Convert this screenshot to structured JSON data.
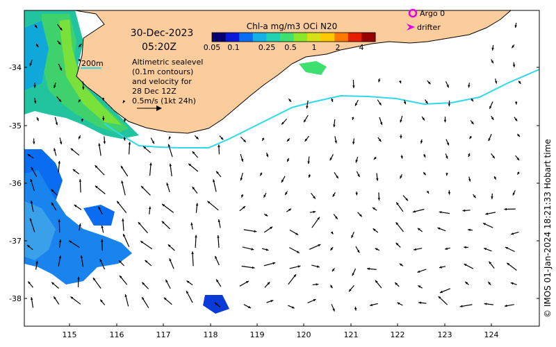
{
  "header": {
    "date": "30-Dec-2023",
    "time": "05:20Z"
  },
  "colorbar": {
    "title": "Chl-a mg/m3 OCi N20",
    "ticks": [
      "0.05",
      "0.1",
      "0.25",
      "0.5",
      "1",
      "2",
      "4"
    ],
    "colors": [
      "#08006e",
      "#0a1ad8",
      "#0a6cf0",
      "#14b0e6",
      "#20d2b0",
      "#3ee070",
      "#8ce62a",
      "#d6e014",
      "#ffc800",
      "#ff7800",
      "#e61e00",
      "#960000"
    ]
  },
  "legend": {
    "argo": "Argo 0",
    "drifter": "drifter",
    "argo_color": "#e000e0",
    "drifter_color": "#e000e0"
  },
  "contour_label": "200m",
  "contour_color": "#30d8e8",
  "annotation": {
    "line1": "Altimetric sealevel",
    "line2": "(0.1m contours)",
    "line3": "and velocity for",
    "line4": "28 Dec 12Z",
    "line5": "0.5m/s (1kt 24h)"
  },
  "x_axis": {
    "ticks": [
      "115",
      "116",
      "117",
      "118",
      "119",
      "120",
      "121",
      "122",
      "123",
      "124"
    ]
  },
  "y_axis": {
    "ticks": [
      "-34",
      "-35",
      "-36",
      "-37",
      "-38"
    ]
  },
  "credit": "© IMOS 01-Jan-2024 18:21:33 Hobart time",
  "colors": {
    "land": "#fbcc9c",
    "ocean": "#ffffff"
  }
}
